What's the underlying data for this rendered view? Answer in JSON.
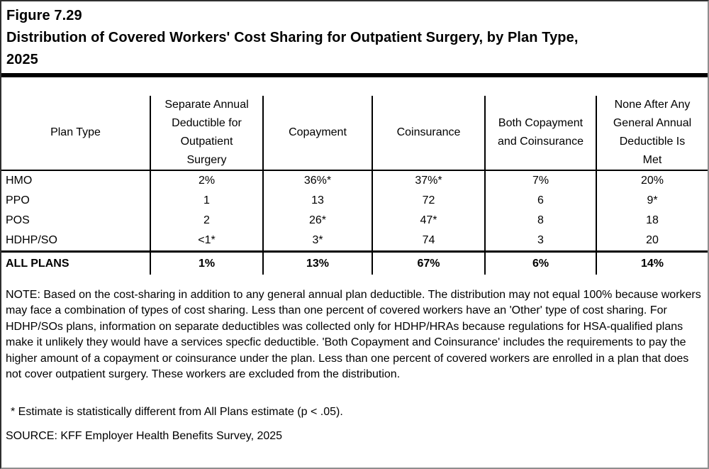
{
  "figure": {
    "label": "Figure 7.29",
    "title_line2": "Distribution of Covered Workers' Cost Sharing for Outpatient Surgery, by Plan Type,",
    "title_line3": "2025"
  },
  "chart_data": {
    "type": "table",
    "title": "Figure 7.29 Distribution of Covered Workers' Cost Sharing for Outpatient Surgery, by Plan Type, 2025",
    "columns": [
      "Plan Type",
      "Separate Annual Deductible for Outpatient Surgery",
      "Copayment",
      "Coinsurance",
      "Both Copayment and Coinsurance",
      "None After Any General Annual Deductible Is Met"
    ],
    "rows": [
      [
        "HMO",
        "2%",
        "36%*",
        "37%*",
        "7%",
        "20%"
      ],
      [
        "PPO",
        "1",
        "13",
        "72",
        "6",
        "9*"
      ],
      [
        "POS",
        "2",
        "26*",
        "47*",
        "8",
        "18"
      ],
      [
        "HDHP/SO",
        "<1*",
        "3*",
        "74",
        "3",
        "20"
      ],
      [
        "ALL PLANS",
        "1%",
        "13%",
        "67%",
        "6%",
        "14%"
      ]
    ]
  },
  "table": {
    "columns": [
      "Plan Type",
      "Separate Annual\nDeductible for\nOutpatient\nSurgery",
      "Copayment",
      "Coinsurance",
      "Both Copayment\nand Coinsurance",
      "None After Any\nGeneral Annual\nDeductible Is\nMet"
    ],
    "rows": [
      {
        "plan": "HMO",
        "values": [
          "2%",
          "36%*",
          "37%*",
          "7%",
          "20%"
        ]
      },
      {
        "plan": "PPO",
        "values": [
          "1",
          "13",
          "72",
          "6",
          "9*"
        ]
      },
      {
        "plan": "POS",
        "values": [
          "2",
          "26*",
          "47*",
          "8",
          "18"
        ]
      },
      {
        "plan": "HDHP/SO",
        "values": [
          "<1*",
          "3*",
          "74",
          "3",
          "20"
        ]
      }
    ],
    "total_row": {
      "plan": "ALL PLANS",
      "values": [
        "1%",
        "13%",
        "67%",
        "6%",
        "14%"
      ]
    }
  },
  "notes": {
    "note": "NOTE: Based on the cost-sharing in addition to any general annual plan deductible. The distribution may not equal 100% because workers may face a combination of types of cost sharing. Less than one percent of covered workers have an 'Other' type of cost sharing. For HDHP/SOs plans, information on separate deductibles was collected only for HDHP/HRAs because regulations for HSA-qualified plans make it unlikely they would have a services specfic deductible. 'Both Copayment and Coinsurance' includes the requirements to pay the higher amount of a copayment or coinsurance under the plan. Less than one percent of covered workers are enrolled in a plan that does not cover outpatient surgery. These workers are excluded from the distribution.",
    "footnote": "* Estimate is statistically different from All Plans estimate (p < .05).",
    "source": "SOURCE: KFF Employer Health Benefits Survey, 2025"
  },
  "colors": {
    "text": "#000000",
    "background": "#ffffff",
    "rule": "#000000"
  }
}
